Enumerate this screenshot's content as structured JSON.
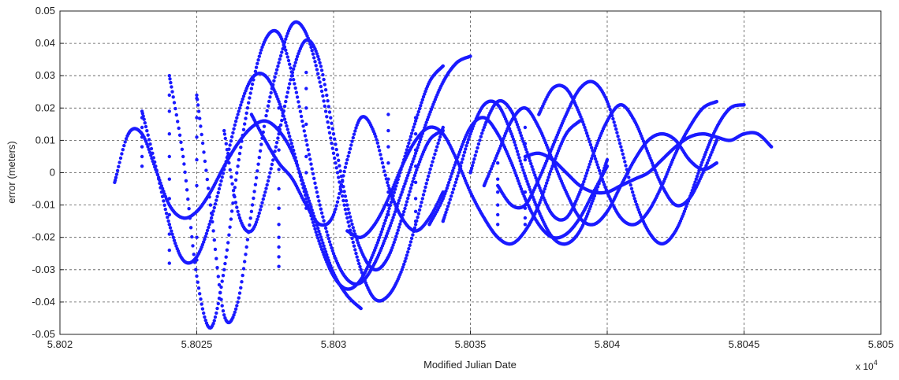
{
  "chart_data": {
    "type": "scatter",
    "title": "",
    "xlabel": "Modified Julian Date",
    "ylabel": "error (meters)",
    "x_exponent_label": "x 10",
    "x_exponent_power": "4",
    "xlim": [
      58020,
      58050
    ],
    "ylim": [
      -0.05,
      0.05
    ],
    "x_ticks": [
      58020,
      58025,
      58030,
      58035,
      58040,
      58045,
      58050
    ],
    "x_tick_labels": [
      "5.802",
      "5.8025",
      "5.803",
      "5.8035",
      "5.804",
      "5.8045",
      "5.805"
    ],
    "y_ticks": [
      -0.05,
      -0.04,
      -0.03,
      -0.02,
      -0.01,
      0,
      0.01,
      0.02,
      0.03,
      0.04,
      0.05
    ],
    "y_tick_labels": [
      "-0.05",
      "-0.04",
      "-0.03",
      "-0.02",
      "-0.01",
      "0",
      "0.01",
      "0.02",
      "0.03",
      "0.04",
      "0.05"
    ],
    "grid": true,
    "marker_color": "#1a1aff",
    "series": [
      {
        "x": [
          58022.0,
          58022.5,
          58023.0,
          58023.5,
          58024.0,
          58024.5,
          58025.0,
          58025.5,
          58026.0,
          58026.5,
          58027.0,
          58027.5,
          58028.0,
          58028.5,
          58029.0,
          58029.5,
          58030.0,
          58030.5,
          58031.0
        ],
        "y": [
          -0.003,
          0.012,
          0.012,
          0.001,
          -0.01,
          -0.014,
          -0.012,
          -0.006,
          0.002,
          0.009,
          0.014,
          0.016,
          0.013,
          0.006,
          -0.006,
          -0.019,
          -0.031,
          -0.038,
          -0.042
        ]
      },
      {
        "x": [
          58023.0,
          58023.5,
          58024.0,
          58024.5,
          58025.0,
          58025.5,
          58026.0,
          58026.5,
          58027.0,
          58027.5,
          58028.0,
          58028.5,
          58029.0,
          58029.5,
          58030.0,
          58030.5,
          58031.0,
          58031.5,
          58032.0,
          58032.5,
          58033.0,
          58033.5,
          58034.0
        ],
        "y": [
          0.019,
          0.002,
          -0.016,
          -0.027,
          -0.026,
          -0.015,
          0.001,
          0.018,
          0.029,
          0.03,
          0.022,
          0.008,
          -0.008,
          -0.022,
          -0.032,
          -0.036,
          -0.033,
          -0.024,
          -0.012,
          0.002,
          0.016,
          0.028,
          0.033
        ]
      },
      {
        "x": [
          58024.0,
          58024.5,
          58025.0,
          58025.5,
          58026.0,
          58026.5,
          58027.0,
          58027.5,
          58028.0,
          58028.5,
          58029.0,
          58029.5,
          58030.0,
          58030.5,
          58031.0,
          58031.5,
          58032.0,
          58032.5,
          58033.0,
          58033.5,
          58034.0,
          58034.5,
          58035.0
        ],
        "y": [
          0.03,
          0.005,
          -0.032,
          -0.048,
          -0.03,
          0.002,
          0.026,
          0.041,
          0.043,
          0.03,
          0.01,
          -0.01,
          -0.025,
          -0.033,
          -0.034,
          -0.028,
          -0.018,
          -0.006,
          0.006,
          0.018,
          0.028,
          0.034,
          0.036
        ]
      },
      {
        "x": [
          58025.0,
          58025.5,
          58026.0,
          58026.5,
          58027.0,
          58027.5,
          58028.0,
          58028.5,
          58029.0,
          58029.5,
          58030.0,
          58030.5,
          58031.0,
          58031.5,
          58032.0,
          58032.5,
          58033.0,
          58033.5,
          58034.0
        ],
        "y": [
          0.024,
          -0.01,
          -0.044,
          -0.04,
          -0.012,
          0.016,
          0.034,
          0.046,
          0.043,
          0.028,
          0.006,
          -0.014,
          -0.03,
          -0.039,
          -0.038,
          -0.03,
          -0.016,
          0.0,
          0.014
        ]
      },
      {
        "x": [
          58026.0,
          58026.5,
          58027.0,
          58027.5,
          58028.0,
          58028.5,
          58029.0,
          58029.5,
          58030.0,
          58030.5,
          58031.0,
          58031.5,
          58032.0,
          58032.5,
          58033.0,
          58033.5,
          58034.0
        ],
        "y": [
          0.013,
          -0.012,
          -0.018,
          -0.006,
          0.012,
          0.031,
          0.041,
          0.034,
          0.012,
          -0.01,
          -0.024,
          -0.03,
          -0.026,
          -0.014,
          0.0,
          0.01,
          0.013
        ]
      },
      {
        "x": [
          58027.0,
          58027.5,
          58028.0,
          58028.5,
          58029.0,
          58029.5,
          58030.0,
          58030.5,
          58031.0,
          58031.5,
          58032.0,
          58032.5,
          58033.0,
          58033.5,
          58034.0
        ],
        "y": [
          0.018,
          0.01,
          0.003,
          -0.002,
          -0.01,
          -0.016,
          -0.013,
          0.004,
          0.017,
          0.012,
          -0.004,
          -0.014,
          -0.018,
          -0.014,
          -0.006
        ]
      },
      {
        "x": [
          58030.5,
          58031.0,
          58031.5,
          58032.0,
          58032.5,
          58033.0,
          58033.5,
          58034.0,
          58034.5,
          58035.0,
          58035.5,
          58036.0,
          58036.5,
          58037.0,
          58037.5,
          58038.0,
          58038.5,
          58039.0
        ],
        "y": [
          -0.018,
          -0.02,
          -0.016,
          -0.008,
          0.002,
          0.01,
          0.014,
          0.012,
          0.004,
          -0.006,
          -0.014,
          -0.02,
          -0.022,
          -0.018,
          -0.01,
          0.002,
          0.012,
          0.016
        ]
      },
      {
        "x": [
          58033.5,
          58034.0,
          58034.5,
          58035.0,
          58035.5,
          58036.0,
          58036.5,
          58037.0,
          58037.5,
          58038.0,
          58038.5,
          58039.0,
          58039.5,
          58040.0
        ],
        "y": [
          -0.016,
          -0.008,
          0.004,
          0.014,
          0.017,
          0.012,
          0.003,
          -0.008,
          -0.016,
          -0.02,
          -0.019,
          -0.014,
          -0.006,
          0.002
        ]
      },
      {
        "x": [
          58034.0,
          58034.5,
          58035.0,
          58035.5,
          58036.0,
          58036.5,
          58037.0,
          58037.5,
          58038.0,
          58038.5,
          58039.0,
          58039.5,
          58040.0
        ],
        "y": [
          -0.015,
          -0.002,
          0.012,
          0.021,
          0.021,
          0.012,
          -0.001,
          -0.012,
          -0.02,
          -0.022,
          -0.018,
          -0.008,
          0.004
        ]
      },
      {
        "x": [
          58035.0,
          58035.5,
          58036.0,
          58036.5,
          58037.0,
          58037.5,
          58038.0,
          58038.5,
          58039.0,
          58039.5,
          58040.0,
          58040.5,
          58041.0,
          58041.5,
          58042.0,
          58042.5,
          58043.0,
          58043.5,
          58044.0
        ],
        "y": [
          0.0,
          0.014,
          0.022,
          0.019,
          0.008,
          -0.004,
          -0.013,
          -0.014,
          -0.006,
          0.006,
          0.016,
          0.021,
          0.016,
          0.006,
          -0.004,
          -0.01,
          -0.008,
          0.0,
          0.01
        ]
      },
      {
        "x": [
          58035.5,
          58036.0,
          58036.5,
          58037.0,
          58037.5,
          58038.0,
          58038.5,
          58039.0,
          58039.5,
          58040.0,
          58040.5,
          58041.0,
          58041.5,
          58042.0,
          58042.5,
          58043.0,
          58043.5,
          58044.0
        ],
        "y": [
          -0.004,
          0.006,
          0.016,
          0.02,
          0.014,
          0.004,
          -0.006,
          -0.014,
          -0.016,
          -0.012,
          -0.004,
          0.004,
          0.01,
          0.012,
          0.01,
          0.004,
          0.001,
          0.003
        ]
      },
      {
        "x": [
          58036.0,
          58036.5,
          58037.0,
          58037.5,
          58038.0,
          58038.5,
          58039.0,
          58039.5,
          58040.0,
          58040.5,
          58041.0,
          58041.5,
          58042.0,
          58042.5,
          58043.0,
          58043.5,
          58044.0,
          58044.5,
          58045.0
        ],
        "y": [
          -0.004,
          -0.01,
          -0.01,
          -0.002,
          0.008,
          0.018,
          0.026,
          0.028,
          0.022,
          0.008,
          -0.008,
          -0.018,
          -0.022,
          -0.018,
          -0.008,
          0.004,
          0.014,
          0.02,
          0.021
        ]
      },
      {
        "x": [
          58037.0,
          58037.5,
          58038.0,
          58038.5,
          58039.0,
          58039.5,
          58040.0,
          58040.5,
          58041.0,
          58041.5,
          58042.0,
          58042.5,
          58043.0,
          58043.5,
          58044.0,
          58044.5,
          58045.0,
          58045.5,
          58046.0
        ],
        "y": [
          0.005,
          0.006,
          0.004,
          0.0,
          -0.004,
          -0.006,
          -0.006,
          -0.004,
          -0.002,
          0.0,
          0.004,
          0.008,
          0.011,
          0.012,
          0.011,
          0.01,
          0.012,
          0.012,
          0.008
        ]
      },
      {
        "x": [
          58037.5,
          58038.0,
          58038.5,
          58039.0,
          58039.5,
          58040.0,
          58040.5,
          58041.0,
          58041.5,
          58042.0,
          58042.5,
          58043.0,
          58043.5,
          58044.0
        ],
        "y": [
          0.018,
          0.026,
          0.026,
          0.018,
          0.006,
          -0.006,
          -0.014,
          -0.016,
          -0.012,
          -0.004,
          0.006,
          0.014,
          0.02,
          0.022
        ]
      }
    ],
    "scattered_points": {
      "x": [
        58023,
        58023,
        58023,
        58023,
        58023,
        58023,
        58024,
        58024,
        58024,
        58024,
        58024,
        58024,
        58024,
        58024,
        58024,
        58024,
        58024,
        58025,
        58025,
        58025,
        58025,
        58025,
        58025,
        58025,
        58025,
        58028,
        58028,
        58028,
        58028,
        58028,
        58028,
        58028,
        58028,
        58028,
        58028,
        58028,
        58028,
        58029,
        58029,
        58029,
        58029,
        58029,
        58029,
        58029,
        58029,
        58029,
        58032,
        58032,
        58032,
        58032,
        58032,
        58032,
        58032,
        58032,
        58033,
        58033,
        58033,
        58033,
        58033,
        58033,
        58033,
        58033,
        58036,
        58036,
        58036,
        58036,
        58036,
        58036,
        58037,
        58037,
        58037,
        58037,
        58037,
        58037,
        58037,
        58037
      ],
      "y": [
        0.017,
        0.014,
        0.011,
        0.008,
        0.005,
        0.002,
        0.024,
        0.019,
        0.012,
        0.005,
        -0.002,
        -0.008,
        -0.013,
        -0.016,
        -0.019,
        -0.024,
        -0.028,
        0.023,
        0.017,
        0.011,
        0.004,
        -0.004,
        -0.012,
        -0.02,
        -0.027,
        0.02,
        0.014,
        0.007,
        0.001,
        -0.005,
        -0.011,
        -0.016,
        -0.02,
        -0.023,
        -0.026,
        -0.029,
        -0.011,
        0.031,
        0.026,
        0.02,
        0.015,
        0.01,
        0.005,
        0.0,
        -0.006,
        -0.011,
        0.018,
        0.013,
        0.008,
        0.003,
        -0.002,
        -0.006,
        -0.01,
        -0.013,
        0.017,
        0.012,
        0.007,
        0.002,
        -0.003,
        -0.008,
        -0.012,
        -0.015,
        0.003,
        -0.002,
        -0.006,
        -0.01,
        -0.013,
        -0.016,
        0.014,
        0.009,
        0.004,
        -0.001,
        -0.006,
        -0.011,
        -0.014,
        -0.016
      ]
    }
  }
}
